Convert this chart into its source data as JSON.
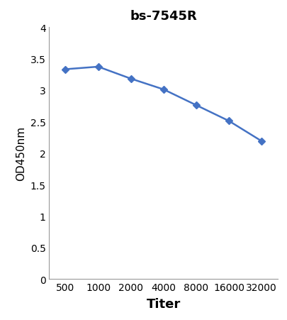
{
  "title": "bs-7545R",
  "xlabel": "Titer",
  "ylabel": "OD450nm",
  "x_values": [
    1,
    2,
    3,
    4,
    5,
    6,
    7
  ],
  "y_values": [
    3.33,
    3.37,
    3.18,
    3.01,
    2.76,
    2.51,
    2.19
  ],
  "x_ticklabels": [
    "500",
    "1000",
    "2000",
    "4000",
    "8000",
    "16000",
    "32000"
  ],
  "ylim": [
    0,
    4.0
  ],
  "yticks": [
    0,
    0.5,
    1.0,
    1.5,
    2.0,
    2.5,
    3.0,
    3.5,
    4.0
  ],
  "ytick_labels": [
    "0",
    "0.5",
    "1",
    "1.5",
    "2",
    "2.5",
    "3",
    "3.5",
    "4"
  ],
  "line_color": "#4472C4",
  "marker": "D",
  "marker_size": 5,
  "line_width": 1.8,
  "title_fontsize": 13,
  "title_fontweight": "bold",
  "xlabel_fontsize": 13,
  "xlabel_fontweight": "bold",
  "ylabel_fontsize": 11,
  "ylabel_fontweight": "normal",
  "tick_fontsize": 10,
  "background_color": "#ffffff"
}
